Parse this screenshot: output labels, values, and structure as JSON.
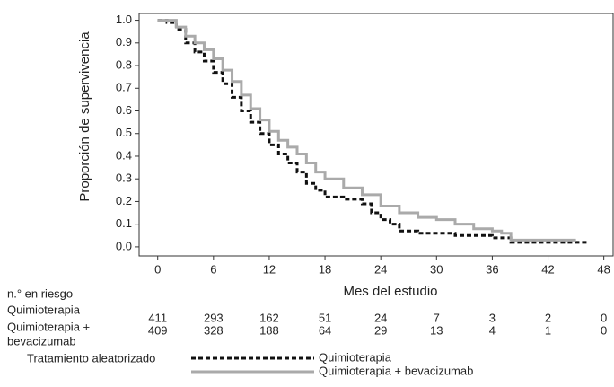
{
  "chart_data": {
    "type": "line",
    "step": true,
    "ylabel": "Proporción de supervivencia",
    "xlabel": "Mes del estudio",
    "xlim": [
      -2,
      49
    ],
    "ylim": [
      -0.04,
      1.03
    ],
    "xticks": [
      0,
      6,
      12,
      18,
      24,
      30,
      36,
      42,
      48
    ],
    "yticks": [
      {
        "value": 0,
        "label": "0.0"
      },
      0.1,
      0.2,
      0.3,
      0.4,
      0.5,
      0.6,
      0.7,
      0.8,
      0.9,
      {
        "value": 1,
        "label": "1.0"
      }
    ],
    "series": [
      {
        "name": "Quimioterapia",
        "color": "#111111",
        "dash": true,
        "x": [
          0,
          1,
          2,
          3,
          4,
          5,
          6,
          7,
          8,
          9,
          10,
          11,
          12,
          13,
          14,
          15,
          16,
          17,
          18,
          20,
          22,
          23,
          24,
          25,
          26,
          28,
          32,
          36,
          38,
          46
        ],
        "values": [
          1.0,
          0.99,
          0.96,
          0.9,
          0.86,
          0.82,
          0.77,
          0.72,
          0.66,
          0.6,
          0.55,
          0.5,
          0.45,
          0.41,
          0.37,
          0.33,
          0.28,
          0.25,
          0.22,
          0.21,
          0.19,
          0.15,
          0.12,
          0.1,
          0.07,
          0.06,
          0.05,
          0.04,
          0.02,
          0.01
        ]
      },
      {
        "name": "Quimioterapia + bevacizumab",
        "color": "#aaaaaa",
        "dash": false,
        "x": [
          0,
          2,
          3,
          4,
          5,
          6,
          7,
          8,
          9,
          10,
          11,
          12,
          13,
          14,
          15,
          16,
          17,
          18,
          20,
          22,
          24,
          26,
          28,
          30,
          32,
          34,
          36,
          37,
          38,
          45
        ],
        "values": [
          1.0,
          0.97,
          0.93,
          0.9,
          0.87,
          0.83,
          0.78,
          0.73,
          0.67,
          0.61,
          0.56,
          0.51,
          0.47,
          0.44,
          0.41,
          0.37,
          0.33,
          0.3,
          0.26,
          0.23,
          0.18,
          0.15,
          0.13,
          0.12,
          0.1,
          0.08,
          0.07,
          0.06,
          0.03,
          0.03
        ]
      }
    ],
    "risk_table": {
      "title": "n.° en riesgo",
      "rows": [
        {
          "label": [
            "Quimioterapia"
          ],
          "values": [
            411,
            293,
            162,
            51,
            24,
            7,
            3,
            2,
            0
          ]
        },
        {
          "label": [
            "Quimioterapia +",
            "bevacizumab"
          ],
          "values": [
            409,
            328,
            188,
            64,
            29,
            13,
            4,
            1,
            0
          ]
        }
      ]
    },
    "legend_title": "Tratamiento aleatorizado"
  }
}
